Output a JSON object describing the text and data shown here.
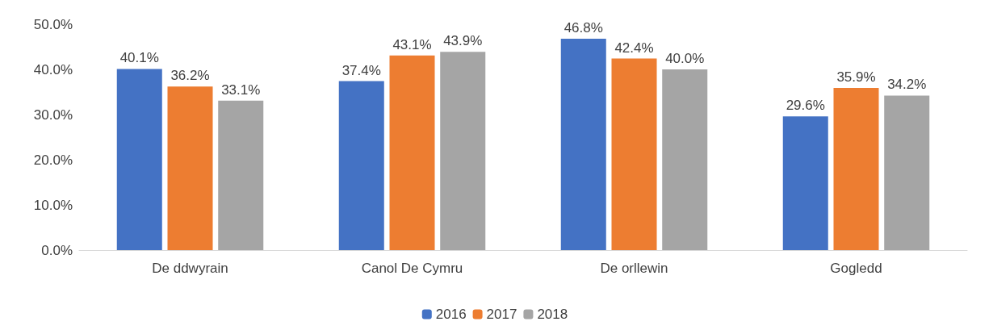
{
  "chart_data": {
    "type": "bar",
    "categories": [
      "De ddwyrain",
      "Canol De Cymru",
      "De orllewin",
      "Gogledd"
    ],
    "series": [
      {
        "name": "2016",
        "color": "#4472c4",
        "values": [
          40.1,
          37.4,
          46.8,
          29.6
        ],
        "value_labels": [
          "40.1%",
          "37.4%",
          "46.8%",
          "29.6%"
        ]
      },
      {
        "name": "2017",
        "color": "#ed7d31",
        "values": [
          36.2,
          43.1,
          42.4,
          35.9
        ],
        "value_labels": [
          "36.2%",
          "43.1%",
          "42.4%",
          "35.9%"
        ]
      },
      {
        "name": "2018",
        "color": "#a5a5a5",
        "values": [
          33.1,
          43.9,
          40.0,
          34.2
        ],
        "value_labels": [
          "33.1%",
          "43.9%",
          "40.0%",
          "34.2%"
        ]
      }
    ],
    "ylim": [
      0,
      50
    ],
    "yticks": [
      {
        "value": 0,
        "label": "0.0%"
      },
      {
        "value": 10,
        "label": "10.0%"
      },
      {
        "value": 20,
        "label": "20.0%"
      },
      {
        "value": 30,
        "label": "30.0%"
      },
      {
        "value": 40,
        "label": "40.0%"
      },
      {
        "value": 50,
        "label": "50.0%"
      }
    ],
    "grid": false,
    "legend": "bottom"
  }
}
